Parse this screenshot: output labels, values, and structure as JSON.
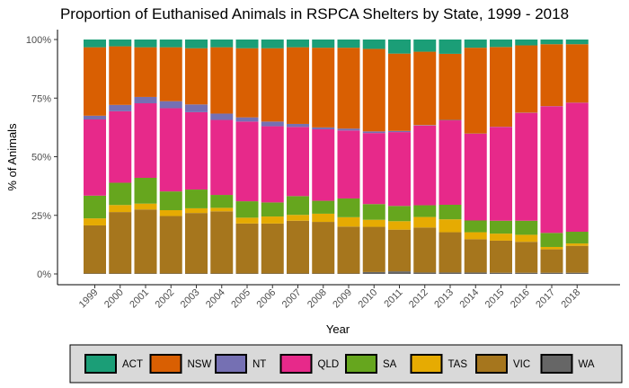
{
  "chart_data": {
    "type": "bar",
    "stacked": "percent",
    "title": "Proportion of Euthanised Animals in RSPCA Shelters by State, 1999 - 2018",
    "xlabel": "Year",
    "ylabel": "% of Animals",
    "ylim": [
      0,
      1
    ],
    "yticks": [
      "0%",
      "25%",
      "50%",
      "75%",
      "100%"
    ],
    "grid": false,
    "legend_position": "bottom",
    "categories": [
      "1999",
      "2000",
      "2001",
      "2002",
      "2003",
      "2004",
      "2005",
      "2006",
      "2007",
      "2008",
      "2009",
      "2010",
      "2011",
      "2012",
      "2013",
      "2014",
      "2015",
      "2016",
      "2017",
      "2018"
    ],
    "series": [
      {
        "name": "WA",
        "color": "#666666",
        "values": [
          0.002,
          0.002,
          0.002,
          0.002,
          0.002,
          0.002,
          0.002,
          0.002,
          0.002,
          0.002,
          0.002,
          0.008,
          0.011,
          0.006,
          0.006,
          0.006,
          0.005,
          0.005,
          0.005,
          0.005
        ]
      },
      {
        "name": "VIC",
        "color": "#A6761D",
        "values": [
          0.205,
          0.262,
          0.273,
          0.245,
          0.258,
          0.265,
          0.213,
          0.213,
          0.225,
          0.22,
          0.2,
          0.193,
          0.178,
          0.192,
          0.172,
          0.142,
          0.137,
          0.132,
          0.1,
          0.115
        ]
      },
      {
        "name": "TAS",
        "color": "#E6AB02",
        "values": [
          0.03,
          0.03,
          0.025,
          0.025,
          0.02,
          0.015,
          0.025,
          0.03,
          0.025,
          0.035,
          0.04,
          0.03,
          0.036,
          0.045,
          0.055,
          0.03,
          0.03,
          0.03,
          0.01,
          0.01
        ]
      },
      {
        "name": "SA",
        "color": "#66A61E",
        "values": [
          0.097,
          0.095,
          0.11,
          0.08,
          0.08,
          0.055,
          0.07,
          0.06,
          0.08,
          0.055,
          0.08,
          0.067,
          0.065,
          0.05,
          0.062,
          0.05,
          0.055,
          0.06,
          0.06,
          0.05
        ]
      },
      {
        "name": "QLD",
        "color": "#E7298A",
        "values": [
          0.325,
          0.305,
          0.318,
          0.355,
          0.33,
          0.32,
          0.34,
          0.325,
          0.295,
          0.305,
          0.29,
          0.303,
          0.315,
          0.34,
          0.36,
          0.37,
          0.4,
          0.46,
          0.54,
          0.55
        ]
      },
      {
        "name": "NT",
        "color": "#7570B3",
        "values": [
          0.016,
          0.027,
          0.027,
          0.03,
          0.033,
          0.027,
          0.018,
          0.02,
          0.013,
          0.008,
          0.008,
          0.007,
          0.005,
          0.002,
          0.002,
          0.001,
          0.001,
          0.001,
          0.001,
          0.001
        ]
      },
      {
        "name": "NSW",
        "color": "#D95F02",
        "values": [
          0.292,
          0.25,
          0.212,
          0.23,
          0.24,
          0.283,
          0.295,
          0.313,
          0.327,
          0.34,
          0.345,
          0.352,
          0.33,
          0.313,
          0.282,
          0.366,
          0.34,
          0.287,
          0.264,
          0.249
        ]
      },
      {
        "name": "ACT",
        "color": "#1B9E77",
        "values": [
          0.033,
          0.029,
          0.033,
          0.033,
          0.037,
          0.033,
          0.037,
          0.037,
          0.033,
          0.035,
          0.035,
          0.04,
          0.06,
          0.052,
          0.061,
          0.035,
          0.032,
          0.025,
          0.02,
          0.02
        ]
      }
    ],
    "legend": [
      "ACT",
      "NSW",
      "NT",
      "QLD",
      "SA",
      "TAS",
      "VIC",
      "WA"
    ]
  }
}
